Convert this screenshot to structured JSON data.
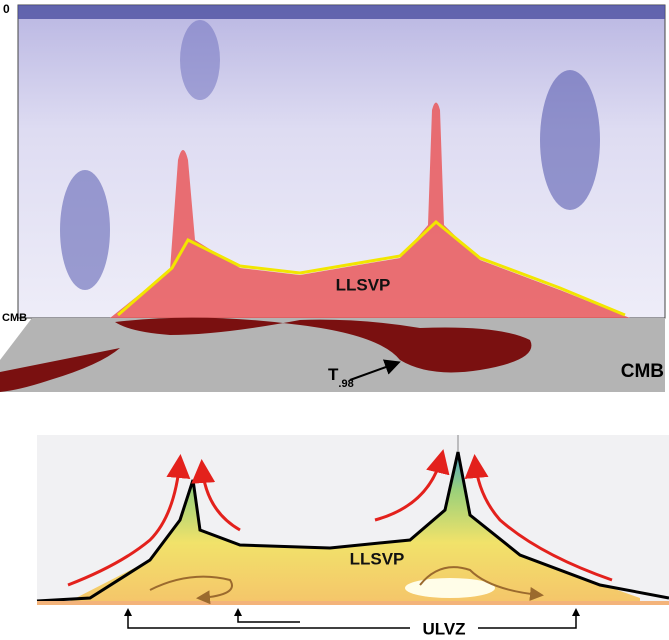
{
  "top_panel": {
    "depth_top": "0",
    "depth_bottom": "CMB",
    "region": "LLSVP"
  },
  "surface": {
    "isosurface": "T",
    "isosurface_subscript": ".98",
    "boundary": "CMB"
  },
  "bottom_panel": {
    "region": "LLSVP",
    "feature": "ULVZ"
  }
}
